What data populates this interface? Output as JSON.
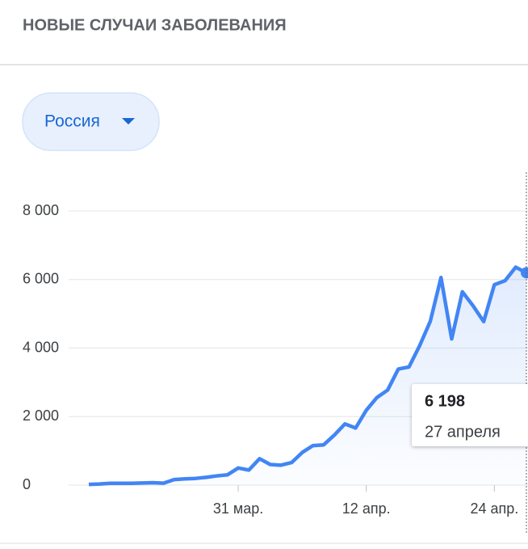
{
  "chart_data": {
    "type": "line",
    "title": "НОВЫЕ СЛУЧАИ ЗАБОЛЕВАНИЯ",
    "region_selector": "Россия",
    "categories": [
      null,
      null,
      null,
      null,
      null,
      null,
      null,
      null,
      null,
      null,
      null,
      null,
      null,
      null,
      "31 мар.",
      null,
      null,
      null,
      null,
      null,
      null,
      null,
      null,
      null,
      null,
      null,
      "12 апр.",
      null,
      null,
      null,
      null,
      null,
      null,
      null,
      null,
      null,
      null,
      null,
      "24 апр.",
      null,
      null,
      null
    ],
    "series": [
      {
        "color": "#4285f4",
        "values": [
          21,
          33,
          52,
          54,
          53,
          61,
          71,
          57,
          163,
          182,
          196,
          228,
          270,
          302,
          500,
          440,
          771,
          601,
          582,
          658,
          954,
          1154,
          1175,
          1459,
          1786,
          1667,
          2186,
          2558,
          2774,
          3388,
          3448,
          4070,
          4785,
          6060,
          4268,
          5642,
          5236,
          4774,
          5849,
          5966,
          6361,
          6198
        ],
        "value_labels": [
          null,
          null,
          null,
          null,
          null,
          null,
          null,
          null,
          null,
          null,
          null,
          null,
          null,
          null,
          null,
          null,
          null,
          null,
          null,
          null,
          null,
          null,
          null,
          null,
          null,
          null,
          null,
          null,
          null,
          null,
          null,
          null,
          null,
          null,
          null,
          null,
          null,
          null,
          null,
          null,
          null,
          "6 198"
        ]
      }
    ],
    "tooltip": {
      "date": "27 апреля"
    },
    "ylim": [
      0,
      8000
    ],
    "yticks": [
      0,
      {
        "value": 2000,
        "label": "2 000"
      },
      {
        "value": 4000,
        "label": "4 000"
      },
      {
        "value": 6000,
        "label": "6 000"
      },
      {
        "value": 8000,
        "label": "8 000"
      }
    ],
    "grid": true
  }
}
